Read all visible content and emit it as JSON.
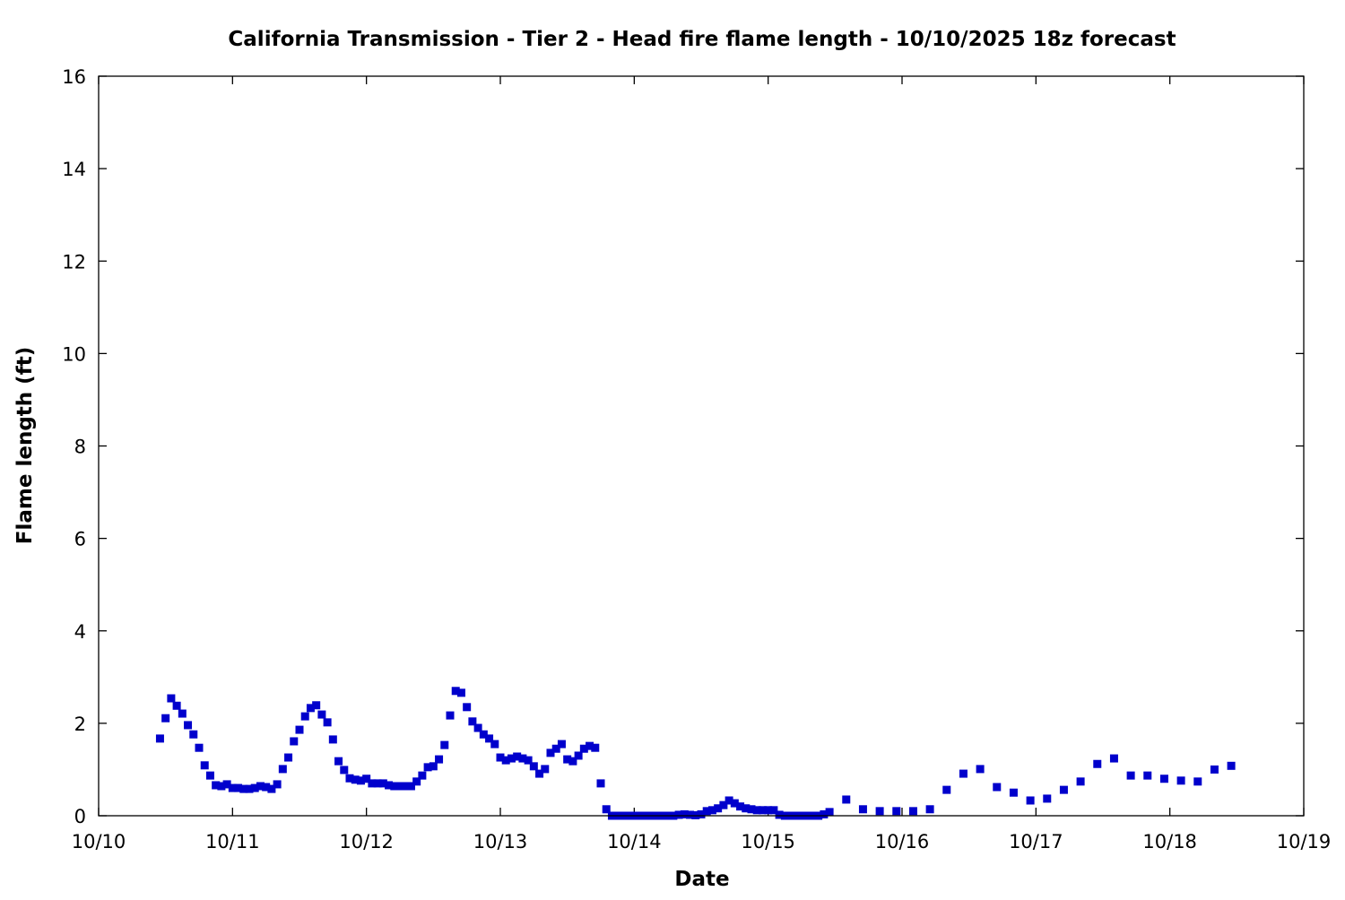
{
  "chart_data": {
    "type": "scatter",
    "title": "California Transmission - Tier 2 - Head fire flame length - 10/10/2025 18z forecast",
    "xlabel": "Date",
    "ylabel": "Flame length (ft)",
    "xlim": [
      "2025-10-10 00:00",
      "2025-10-19 00:00"
    ],
    "ylim": [
      0,
      16
    ],
    "xticks": [
      "10/10",
      "10/11",
      "10/12",
      "10/13",
      "10/14",
      "10/15",
      "10/16",
      "10/17",
      "10/18",
      "10/19"
    ],
    "yticks": [
      "0",
      "2",
      "4",
      "6",
      "8",
      "10",
      "12",
      "14",
      "16"
    ],
    "grid": false,
    "legend": "none",
    "marker_color": "#0000cc",
    "marker": "square",
    "points": [
      [
        "2025-10-10 11:00",
        1.67
      ],
      [
        "2025-10-10 12:00",
        2.11
      ],
      [
        "2025-10-10 13:00",
        2.54
      ],
      [
        "2025-10-10 14:00",
        2.38
      ],
      [
        "2025-10-10 15:00",
        2.21
      ],
      [
        "2025-10-10 16:00",
        1.96
      ],
      [
        "2025-10-10 17:00",
        1.76
      ],
      [
        "2025-10-10 18:00",
        1.47
      ],
      [
        "2025-10-10 19:00",
        1.09
      ],
      [
        "2025-10-10 20:00",
        0.87
      ],
      [
        "2025-10-10 21:00",
        0.66
      ],
      [
        "2025-10-10 22:00",
        0.64
      ],
      [
        "2025-10-10 23:00",
        0.68
      ],
      [
        "2025-10-11 00:00",
        0.6
      ],
      [
        "2025-10-11 01:00",
        0.6
      ],
      [
        "2025-10-11 02:00",
        0.58
      ],
      [
        "2025-10-11 03:00",
        0.58
      ],
      [
        "2025-10-11 04:00",
        0.6
      ],
      [
        "2025-10-11 05:00",
        0.64
      ],
      [
        "2025-10-11 06:00",
        0.62
      ],
      [
        "2025-10-11 07:00",
        0.58
      ],
      [
        "2025-10-11 08:00",
        0.68
      ],
      [
        "2025-10-11 09:00",
        1.01
      ],
      [
        "2025-10-11 10:00",
        1.26
      ],
      [
        "2025-10-11 11:00",
        1.61
      ],
      [
        "2025-10-11 12:00",
        1.86
      ],
      [
        "2025-10-11 13:00",
        2.15
      ],
      [
        "2025-10-11 14:00",
        2.33
      ],
      [
        "2025-10-11 15:00",
        2.39
      ],
      [
        "2025-10-11 16:00",
        2.19
      ],
      [
        "2025-10-11 17:00",
        2.02
      ],
      [
        "2025-10-11 18:00",
        1.65
      ],
      [
        "2025-10-11 19:00",
        1.18
      ],
      [
        "2025-10-11 20:00",
        0.99
      ],
      [
        "2025-10-11 21:00",
        0.81
      ],
      [
        "2025-10-11 22:00",
        0.78
      ],
      [
        "2025-10-11 23:00",
        0.76
      ],
      [
        "2025-10-12 00:00",
        0.8
      ],
      [
        "2025-10-12 01:00",
        0.7
      ],
      [
        "2025-10-12 02:00",
        0.7
      ],
      [
        "2025-10-12 03:00",
        0.7
      ],
      [
        "2025-10-12 04:00",
        0.66
      ],
      [
        "2025-10-12 05:00",
        0.64
      ],
      [
        "2025-10-12 06:00",
        0.64
      ],
      [
        "2025-10-12 07:00",
        0.64
      ],
      [
        "2025-10-12 08:00",
        0.64
      ],
      [
        "2025-10-12 09:00",
        0.74
      ],
      [
        "2025-10-12 10:00",
        0.87
      ],
      [
        "2025-10-12 11:00",
        1.05
      ],
      [
        "2025-10-12 12:00",
        1.07
      ],
      [
        "2025-10-12 13:00",
        1.22
      ],
      [
        "2025-10-12 14:00",
        1.53
      ],
      [
        "2025-10-12 15:00",
        2.17
      ],
      [
        "2025-10-12 16:00",
        2.7
      ],
      [
        "2025-10-12 17:00",
        2.66
      ],
      [
        "2025-10-12 18:00",
        2.35
      ],
      [
        "2025-10-12 19:00",
        2.04
      ],
      [
        "2025-10-12 20:00",
        1.9
      ],
      [
        "2025-10-12 21:00",
        1.76
      ],
      [
        "2025-10-12 22:00",
        1.67
      ],
      [
        "2025-10-12 23:00",
        1.55
      ],
      [
        "2025-10-13 00:00",
        1.26
      ],
      [
        "2025-10-13 01:00",
        1.2
      ],
      [
        "2025-10-13 02:00",
        1.24
      ],
      [
        "2025-10-13 03:00",
        1.28
      ],
      [
        "2025-10-13 04:00",
        1.24
      ],
      [
        "2025-10-13 05:00",
        1.2
      ],
      [
        "2025-10-13 06:00",
        1.07
      ],
      [
        "2025-10-13 07:00",
        0.91
      ],
      [
        "2025-10-13 08:00",
        1.01
      ],
      [
        "2025-10-13 09:00",
        1.36
      ],
      [
        "2025-10-13 10:00",
        1.45
      ],
      [
        "2025-10-13 11:00",
        1.55
      ],
      [
        "2025-10-13 12:00",
        1.22
      ],
      [
        "2025-10-13 13:00",
        1.18
      ],
      [
        "2025-10-13 14:00",
        1.3
      ],
      [
        "2025-10-13 15:00",
        1.45
      ],
      [
        "2025-10-13 16:00",
        1.51
      ],
      [
        "2025-10-13 17:00",
        1.47
      ],
      [
        "2025-10-13 18:00",
        0.7
      ],
      [
        "2025-10-13 19:00",
        0.14
      ],
      [
        "2025-10-13 20:00",
        0
      ],
      [
        "2025-10-13 21:00",
        0
      ],
      [
        "2025-10-13 22:00",
        0
      ],
      [
        "2025-10-13 23:00",
        0
      ],
      [
        "2025-10-14 00:00",
        0
      ],
      [
        "2025-10-14 01:00",
        0
      ],
      [
        "2025-10-14 02:00",
        0
      ],
      [
        "2025-10-14 03:00",
        0
      ],
      [
        "2025-10-14 04:00",
        0
      ],
      [
        "2025-10-14 05:00",
        0
      ],
      [
        "2025-10-14 06:00",
        0
      ],
      [
        "2025-10-14 07:00",
        0
      ],
      [
        "2025-10-14 08:00",
        0.02
      ],
      [
        "2025-10-14 09:00",
        0.03
      ],
      [
        "2025-10-14 10:00",
        0.02
      ],
      [
        "2025-10-14 11:00",
        0.01
      ],
      [
        "2025-10-14 12:00",
        0.03
      ],
      [
        "2025-10-14 13:00",
        0.1
      ],
      [
        "2025-10-14 14:00",
        0.12
      ],
      [
        "2025-10-14 15:00",
        0.16
      ],
      [
        "2025-10-14 16:00",
        0.23
      ],
      [
        "2025-10-14 17:00",
        0.33
      ],
      [
        "2025-10-14 18:00",
        0.27
      ],
      [
        "2025-10-14 19:00",
        0.2
      ],
      [
        "2025-10-14 20:00",
        0.16
      ],
      [
        "2025-10-14 21:00",
        0.14
      ],
      [
        "2025-10-14 22:00",
        0.12
      ],
      [
        "2025-10-14 23:00",
        0.12
      ],
      [
        "2025-10-15 00:00",
        0.12
      ],
      [
        "2025-10-15 01:00",
        0.12
      ],
      [
        "2025-10-15 02:00",
        0.02
      ],
      [
        "2025-10-15 03:00",
        0
      ],
      [
        "2025-10-15 04:00",
        0
      ],
      [
        "2025-10-15 05:00",
        0
      ],
      [
        "2025-10-15 06:00",
        0
      ],
      [
        "2025-10-15 07:00",
        0
      ],
      [
        "2025-10-15 08:00",
        0
      ],
      [
        "2025-10-15 09:00",
        0
      ],
      [
        "2025-10-15 10:00",
        0.03
      ],
      [
        "2025-10-15 11:00",
        0.08
      ],
      [
        "2025-10-15 14:00",
        0.35
      ],
      [
        "2025-10-15 17:00",
        0.14
      ],
      [
        "2025-10-15 20:00",
        0.1
      ],
      [
        "2025-10-15 23:00",
        0.1
      ],
      [
        "2025-10-16 02:00",
        0.1
      ],
      [
        "2025-10-16 05:00",
        0.14
      ],
      [
        "2025-10-16 08:00",
        0.56
      ],
      [
        "2025-10-16 11:00",
        0.91
      ],
      [
        "2025-10-16 14:00",
        1.01
      ],
      [
        "2025-10-16 17:00",
        0.62
      ],
      [
        "2025-10-16 20:00",
        0.5
      ],
      [
        "2025-10-16 23:00",
        0.33
      ],
      [
        "2025-10-17 02:00",
        0.37
      ],
      [
        "2025-10-17 05:00",
        0.56
      ],
      [
        "2025-10-17 08:00",
        0.74
      ],
      [
        "2025-10-17 11:00",
        1.12
      ],
      [
        "2025-10-17 14:00",
        1.24
      ],
      [
        "2025-10-17 17:00",
        0.87
      ],
      [
        "2025-10-17 20:00",
        0.87
      ],
      [
        "2025-10-17 23:00",
        0.8
      ],
      [
        "2025-10-18 02:00",
        0.76
      ],
      [
        "2025-10-18 05:00",
        0.74
      ],
      [
        "2025-10-18 08:00",
        1.0
      ],
      [
        "2025-10-18 11:00",
        1.08
      ]
    ]
  }
}
